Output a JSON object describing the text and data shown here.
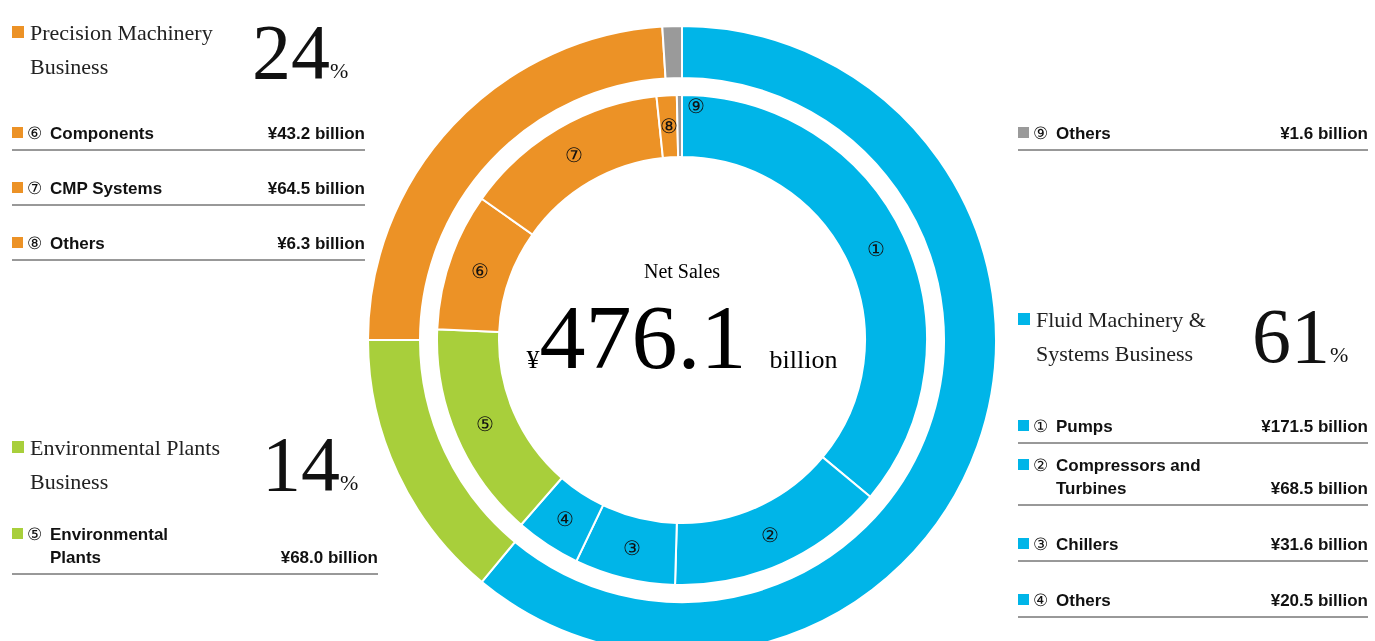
{
  "chart_data": [
    {
      "type": "donut",
      "title": "Net Sales",
      "subtitle": "¥476.1 billion",
      "categories": [
        "Fluid Machinery & Systems Business",
        "Environmental Plants Business",
        "Precision Machinery Business",
        null
      ],
      "values": [
        61,
        14,
        24,
        1
      ],
      "value_labels": [
        "61%",
        "14%",
        "24%",
        null
      ],
      "colors": [
        "#00b5e8",
        "#a8cf3b",
        "#ec9226",
        "#9a9a9a"
      ],
      "legend": "left"
    },
    {
      "type": "donut",
      "categories": [
        "Pumps",
        "Compressors and Turbines",
        "Chillers",
        "Others",
        "Environmental Plants",
        "Components",
        "CMP Systems",
        "Others",
        "Others"
      ],
      "values": [
        171.5,
        68.5,
        31.6,
        20.5,
        68.0,
        43.2,
        64.5,
        6.3,
        1.6
      ],
      "value_labels": [
        "¥171.5 billion",
        "¥68.5 billion",
        "¥31.6 billion",
        "¥20.5 billion",
        "¥68.0 billion",
        "¥43.2 billion",
        "¥64.5 billion",
        "¥6.3 billion",
        "¥1.6 billion"
      ],
      "annotations": [
        "①",
        "②",
        "③",
        "④",
        "⑤",
        "⑥",
        "⑦",
        "⑧",
        "⑨"
      ],
      "colors": [
        "#00b5e8",
        "#00b5e8",
        "#00b5e8",
        "#00b5e8",
        "#a8cf3b",
        "#ec9226",
        "#ec9226",
        "#ec9226",
        "#9a9a9a"
      ],
      "legend": "left"
    }
  ]
}
